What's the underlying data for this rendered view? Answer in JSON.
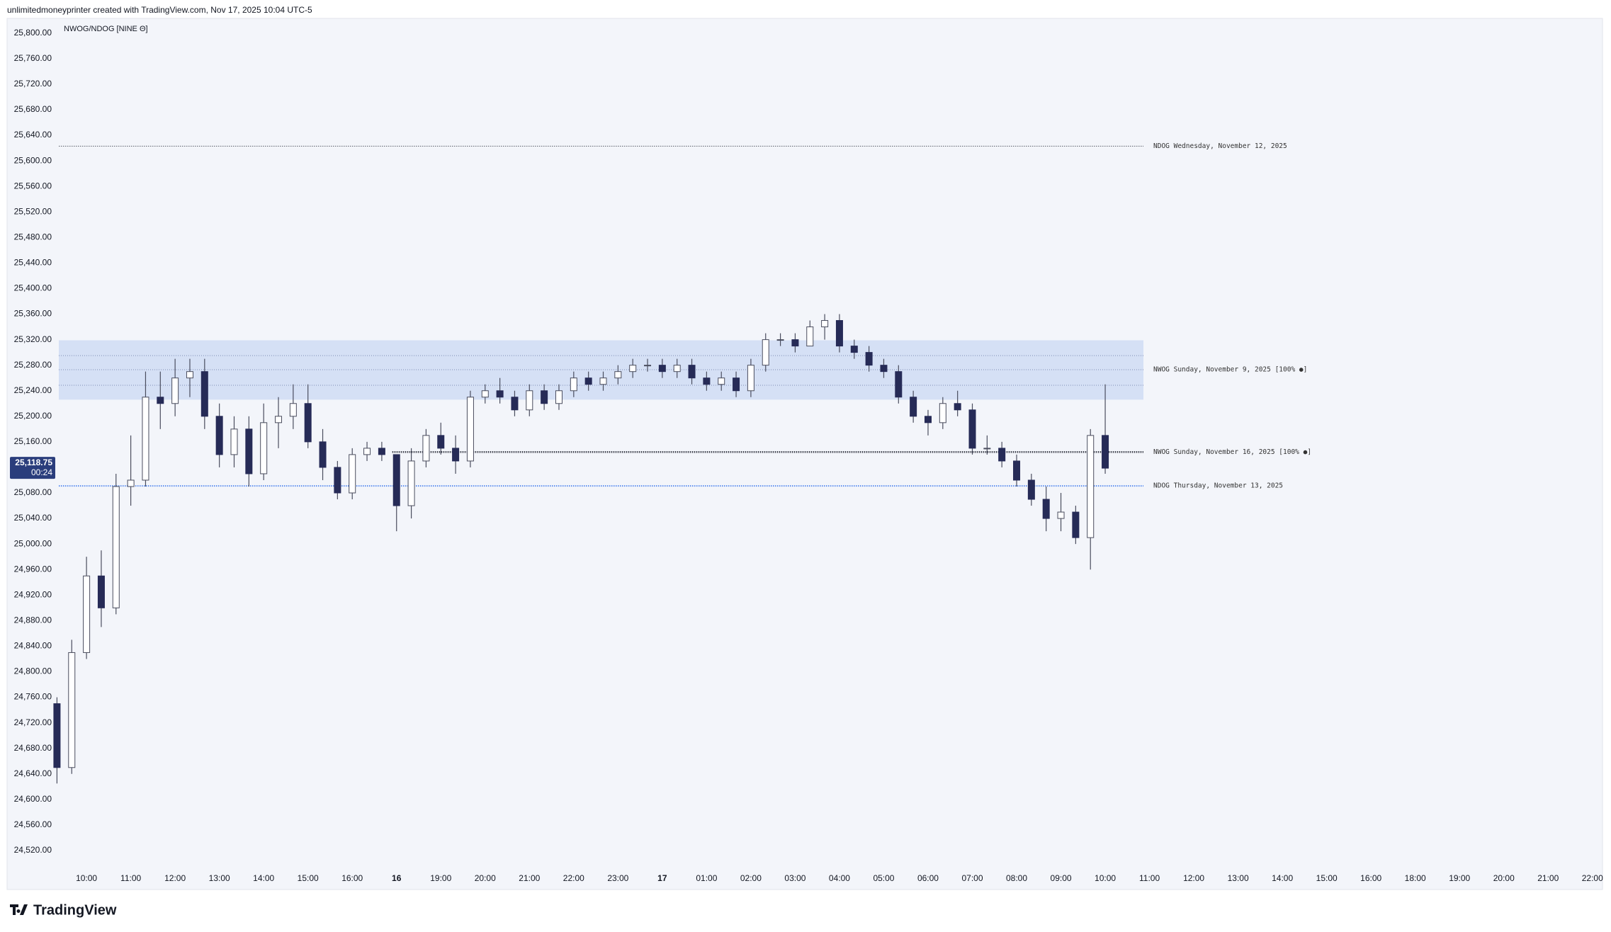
{
  "header": {
    "text": "unlimitedmoneyprinter created with TradingView.com, Nov 17, 2025 10:04 UTC-5"
  },
  "footer": {
    "brand": "TradingView"
  },
  "chart_data": {
    "type": "candlestick",
    "title": "NWOG/NDOG [NINE Θ]",
    "up_color": "#ffffff",
    "down_color": "#262b57",
    "wick_color": "#4a4d5e",
    "grid": false,
    "ylim": [
      24459,
      25823
    ],
    "yticks": [
      {
        "value": 24520,
        "label": "24,520.00"
      },
      {
        "value": 24560,
        "label": "24,560.00"
      },
      {
        "value": 24600,
        "label": "24,600.00"
      },
      {
        "value": 24640,
        "label": "24,640.00"
      },
      {
        "value": 24680,
        "label": "24,680.00"
      },
      {
        "value": 24720,
        "label": "24,720.00"
      },
      {
        "value": 24760,
        "label": "24,760.00"
      },
      {
        "value": 24800,
        "label": "24,800.00"
      },
      {
        "value": 24840,
        "label": "24,840.00"
      },
      {
        "value": 24880,
        "label": "24,880.00"
      },
      {
        "value": 24920,
        "label": "24,920.00"
      },
      {
        "value": 24960,
        "label": "24,960.00"
      },
      {
        "value": 25000,
        "label": "25,000.00"
      },
      {
        "value": 25040,
        "label": "25,040.00"
      },
      {
        "value": 25080,
        "label": "25,080.00"
      },
      {
        "value": 25120,
        "label": "25,120.00"
      },
      {
        "value": 25160,
        "label": "25,160.00"
      },
      {
        "value": 25200,
        "label": "25,200.00"
      },
      {
        "value": 25240,
        "label": "25,240.00"
      },
      {
        "value": 25280,
        "label": "25,280.00"
      },
      {
        "value": 25320,
        "label": "25,320.00"
      },
      {
        "value": 25360,
        "label": "25,360.00"
      },
      {
        "value": 25400,
        "label": "25,400.00"
      },
      {
        "value": 25440,
        "label": "25,440.00"
      },
      {
        "value": 25480,
        "label": "25,480.00"
      },
      {
        "value": 25520,
        "label": "25,520.00"
      },
      {
        "value": 25560,
        "label": "25,560.00"
      },
      {
        "value": 25600,
        "label": "25,600.00"
      },
      {
        "value": 25640,
        "label": "25,640.00"
      },
      {
        "value": 25680,
        "label": "25,680.00"
      },
      {
        "value": 25720,
        "label": "25,720.00"
      },
      {
        "value": 25760,
        "label": "25,760.00"
      },
      {
        "value": 25800,
        "label": "25,800.00"
      }
    ],
    "categories": [
      null,
      null,
      "10:00",
      null,
      null,
      "11:00",
      null,
      null,
      "12:00",
      null,
      null,
      "13:00",
      null,
      null,
      "14:00",
      null,
      null,
      "15:00",
      null,
      null,
      "16:00",
      null,
      null,
      "16",
      null,
      null,
      "19:00",
      null,
      null,
      "20:00",
      null,
      null,
      "21:00",
      null,
      null,
      "22:00",
      null,
      null,
      "23:00",
      null,
      null,
      "17",
      null,
      null,
      "01:00",
      null,
      null,
      "02:00",
      null,
      null,
      "03:00",
      null,
      null,
      "04:00",
      null,
      null,
      "05:00",
      null,
      null,
      "06:00",
      null,
      null,
      "07:00",
      null,
      null,
      "08:00",
      null,
      null,
      "09:00",
      null,
      null,
      "10:00",
      null,
      null,
      "11:00",
      null,
      null,
      "12:00",
      null,
      null,
      "13:00",
      null,
      null,
      "14:00",
      null,
      null,
      "15:00",
      null,
      null,
      "16:00",
      null,
      null,
      "18:00",
      null,
      null,
      "19:00",
      null,
      null,
      "20:00",
      null,
      null,
      "21:00",
      null,
      null,
      "22:00"
    ],
    "open": [
      24750,
      24650,
      24830,
      24950,
      24900,
      25090,
      25100,
      25230,
      25220,
      25260,
      25270,
      25200,
      25140,
      25180,
      25110,
      25190,
      25200,
      25220,
      25160,
      25120,
      25080,
      25140,
      25150,
      25140,
      25060,
      25130,
      25170,
      25150,
      25130,
      25230,
      25240,
      25230,
      25210,
      25240,
      25220,
      25240,
      25260,
      25250,
      25260,
      25270,
      25280,
      25280,
      25270,
      25280,
      25260,
      25250,
      25260,
      25240,
      25280,
      25320,
      25320,
      25310,
      25340,
      25350,
      25310,
      25300,
      25280,
      25270,
      25230,
      25200,
      25190,
      25220,
      25210,
      25150,
      25150,
      25130,
      25100,
      25070,
      25040,
      25050,
      25010,
      25170,
      null,
      null,
      null,
      null,
      null,
      null,
      null,
      null,
      null,
      null,
      null,
      null,
      null,
      null,
      null,
      null,
      null,
      null,
      null,
      null,
      null,
      null,
      null,
      null,
      null,
      null,
      null,
      null,
      null,
      null,
      null,
      null,
      null
    ],
    "high": [
      24760,
      24850,
      24980,
      24990,
      25110,
      25170,
      25270,
      25270,
      25290,
      25290,
      25290,
      25220,
      25200,
      25200,
      25220,
      25230,
      25250,
      25250,
      25180,
      25130,
      25150,
      25160,
      25160,
      25140,
      25150,
      25180,
      25190,
      25170,
      25240,
      25250,
      25260,
      25240,
      25250,
      25250,
      25250,
      25270,
      25270,
      25270,
      25280,
      25290,
      25290,
      25290,
      25290,
      25290,
      25270,
      25270,
      25270,
      25290,
      25330,
      25330,
      25330,
      25350,
      25360,
      25360,
      25320,
      25310,
      25290,
      25280,
      25240,
      25210,
      25230,
      25240,
      25220,
      25170,
      25160,
      25140,
      25110,
      25090,
      25080,
      25060,
      25180,
      25250,
      null,
      null,
      null,
      null,
      null,
      null,
      null,
      null,
      null,
      null,
      null,
      null,
      null,
      null,
      null,
      null,
      null,
      null,
      null,
      null,
      null,
      null,
      null,
      null,
      null,
      null,
      null,
      null,
      null,
      null,
      null,
      null,
      null
    ],
    "low": [
      24625,
      24640,
      24820,
      24870,
      24890,
      25060,
      25090,
      25180,
      25200,
      25230,
      25180,
      25120,
      25120,
      25090,
      25100,
      25150,
      25180,
      25150,
      25100,
      25070,
      25070,
      25130,
      25130,
      25020,
      25040,
      25120,
      25140,
      25110,
      25120,
      25220,
      25220,
      25200,
      25200,
      25210,
      25210,
      25230,
      25240,
      25240,
      25250,
      25260,
      25270,
      25260,
      25260,
      25250,
      25240,
      25240,
      25230,
      25230,
      25270,
      25310,
      25300,
      25310,
      25320,
      25300,
      25290,
      25270,
      25260,
      25220,
      25190,
      25170,
      25180,
      25200,
      25140,
      25140,
      25120,
      25090,
      25060,
      25020,
      25020,
      25000,
      24960,
      25110,
      null,
      null,
      null,
      null,
      null,
      null,
      null,
      null,
      null,
      null,
      null,
      null,
      null,
      null,
      null,
      null,
      null,
      null,
      null,
      null,
      null,
      null,
      null,
      null,
      null,
      null,
      null,
      null,
      null,
      null,
      null,
      null,
      null
    ],
    "close": [
      24650,
      24830,
      24950,
      24900,
      25090,
      25100,
      25230,
      25220,
      25260,
      25270,
      25200,
      25140,
      25180,
      25110,
      25190,
      25200,
      25220,
      25160,
      25120,
      25080,
      25140,
      25150,
      25140,
      25060,
      25130,
      25170,
      25150,
      25130,
      25230,
      25240,
      25230,
      25210,
      25240,
      25220,
      25240,
      25260,
      25250,
      25260,
      25270,
      25280,
      25280,
      25270,
      25280,
      25260,
      25250,
      25260,
      25240,
      25280,
      25320,
      25320,
      25310,
      25340,
      25350,
      25310,
      25300,
      25280,
      25270,
      25230,
      25200,
      25190,
      25220,
      25210,
      25150,
      25150,
      25130,
      25100,
      25070,
      25040,
      25050,
      25010,
      25170,
      25118.75,
      null,
      null,
      null,
      null,
      null,
      null,
      null,
      null,
      null,
      null,
      null,
      null,
      null,
      null,
      null,
      null,
      null,
      null,
      null,
      null,
      null,
      null,
      null,
      null,
      null,
      null,
      null,
      null,
      null,
      null,
      null,
      null,
      null
    ],
    "last_price": {
      "value": 25118.75,
      "label": "25,118.75",
      "countdown": "00:24",
      "color": "#2a3d7c"
    },
    "zones": [
      {
        "label": "NWOG Sunday, November 9, 2025 [100% ●]",
        "top": 25319,
        "bottom": 25226,
        "lines": [
          25295,
          25273,
          25248.5
        ],
        "color": "#d5e0f5",
        "line_color": "#7d8db5"
      }
    ],
    "levels": [
      {
        "label": "NDOG Wednesday, November 12, 2025",
        "value": 25623,
        "color": "#555a66"
      },
      {
        "label": "NWOG Sunday, November 16, 2025 [100% ●]",
        "value": 25144,
        "color": "#3a3d48"
      },
      {
        "label": "NDOG Thursday, November 13, 2025",
        "value": 25091,
        "color": "#5b8def"
      }
    ]
  }
}
